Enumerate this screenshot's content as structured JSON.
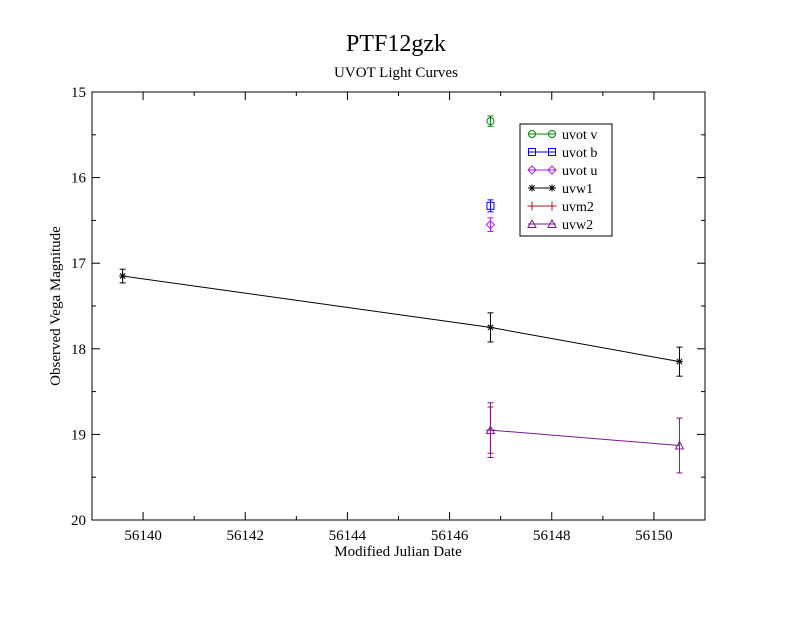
{
  "chart_data": {
    "type": "scatter",
    "title": "PTF12gzk",
    "subtitle": "UVOT Light Curves",
    "xlabel": "Modified Julian Date",
    "ylabel": "Observed Vega Magnitude",
    "xlim": [
      56139.0,
      56151.0
    ],
    "ylim": [
      20,
      15
    ],
    "y_inverted": true,
    "xticks": [
      56140,
      56142,
      56144,
      56146,
      56148,
      56150
    ],
    "yticks": [
      15,
      16,
      17,
      18,
      19,
      20
    ],
    "grid": false,
    "legend_position": "top-right",
    "series": [
      {
        "name": "uvot v",
        "color": "#008000",
        "marker": "circle",
        "connected": true,
        "points": [
          {
            "x": 56146.8,
            "y": 15.34,
            "err": 0.06
          }
        ]
      },
      {
        "name": "uvot b",
        "color": "#0000ff",
        "marker": "square",
        "connected": true,
        "points": [
          {
            "x": 56146.8,
            "y": 16.33,
            "err": 0.07
          }
        ]
      },
      {
        "name": "uvot u",
        "color": "#a020f0",
        "marker": "diamond",
        "connected": true,
        "points": [
          {
            "x": 56146.8,
            "y": 16.55,
            "err": 0.08
          }
        ]
      },
      {
        "name": "uvw1",
        "color": "#000000",
        "marker": "asterisk",
        "connected": true,
        "points": [
          {
            "x": 56139.6,
            "y": 17.15,
            "err": 0.08
          },
          {
            "x": 56146.8,
            "y": 17.75,
            "err": 0.17
          },
          {
            "x": 56150.5,
            "y": 18.15,
            "err": 0.17
          }
        ]
      },
      {
        "name": "uvm2",
        "color": "#a01818",
        "marker": "plus",
        "connected": true,
        "points": [
          {
            "x": 56146.8,
            "y": 18.95,
            "err": 0.27
          }
        ]
      },
      {
        "name": "uvw2",
        "color": "#7a1a8a",
        "marker": "triangle",
        "connected": true,
        "points": [
          {
            "x": 56146.8,
            "y": 18.95,
            "err": 0.32
          },
          {
            "x": 56150.5,
            "y": 19.13,
            "err": 0.32
          }
        ]
      }
    ]
  }
}
